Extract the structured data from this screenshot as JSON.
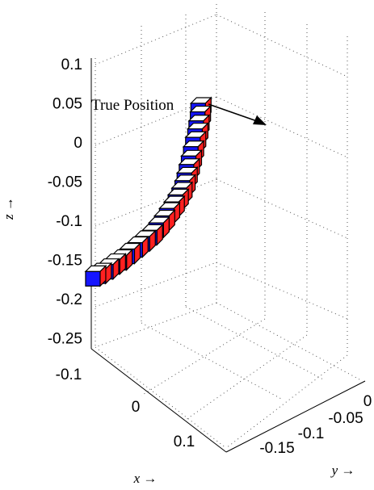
{
  "chart_data": {
    "type": "scatter",
    "projection": "3d",
    "xlabel": "x →",
    "ylabel": "y →",
    "zlabel": "z →",
    "xlim": [
      -0.1,
      0.1
    ],
    "ylim": [
      -0.15,
      0
    ],
    "zlim": [
      -0.25,
      0.1
    ],
    "x_ticks": [
      "-0.1",
      "0",
      "0.1"
    ],
    "y_ticks": [
      "-0.15",
      "-0.1",
      "-0.05",
      "0"
    ],
    "z_ticks": [
      "0.1",
      "0.05",
      "0",
      "-0.05",
      "-0.1",
      "-0.15",
      "-0.2",
      "-0.25"
    ],
    "grid": true,
    "annotation": {
      "text": "True Position"
    },
    "marker": "cube",
    "face_colors": {
      "side": "#ff2020",
      "front": "#1515ff",
      "top": "#ffffff",
      "edge": "#000000"
    },
    "series": [
      {
        "x": [
          0.02,
          0.018,
          0.016,
          0.015,
          0.014,
          0.013,
          0.012,
          0.011,
          0.01,
          0.009,
          0.008,
          0.008,
          0.007,
          0.007,
          0.006,
          0.006,
          0.006,
          0.007,
          0.008,
          0.01,
          0.012,
          0.015,
          0.018,
          0.022,
          0.026
        ],
        "y": [
          -0.005,
          -0.007,
          -0.01,
          -0.012,
          -0.015,
          -0.018,
          -0.021,
          -0.024,
          -0.027,
          -0.03,
          -0.034,
          -0.038,
          -0.043,
          -0.048,
          -0.054,
          -0.06,
          -0.067,
          -0.074,
          -0.081,
          -0.088,
          -0.095,
          -0.1,
          -0.105,
          -0.11,
          -0.113
        ],
        "z": [
          0.0,
          -0.008,
          -0.016,
          -0.024,
          -0.032,
          -0.041,
          -0.05,
          -0.058,
          -0.066,
          -0.073,
          -0.079,
          -0.085,
          -0.09,
          -0.095,
          -0.1,
          -0.105,
          -0.11,
          -0.114,
          -0.118,
          -0.123,
          -0.128,
          -0.132,
          -0.137,
          -0.142,
          -0.146
        ]
      }
    ]
  }
}
